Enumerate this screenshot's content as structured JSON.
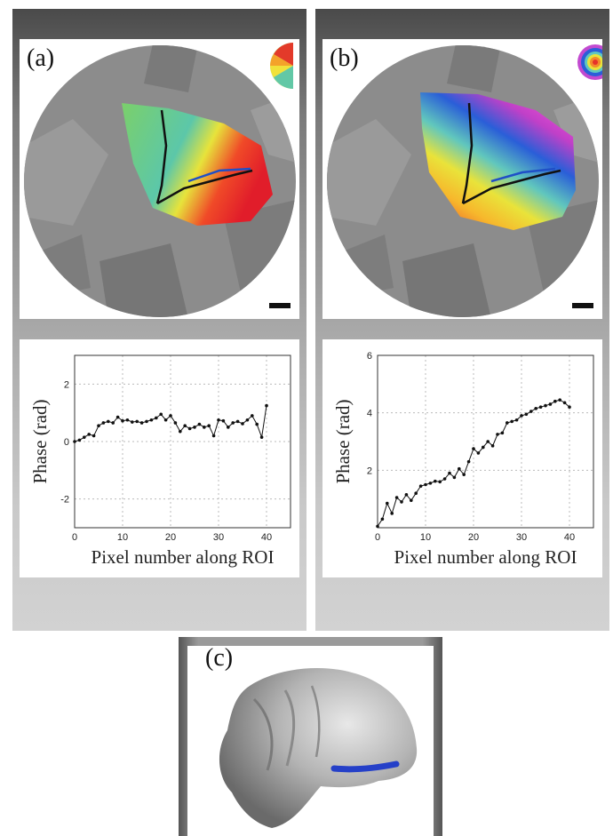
{
  "panels": {
    "a": {
      "label": "(a)"
    },
    "b": {
      "label": "(b)"
    },
    "c": {
      "label": "(c)"
    }
  },
  "colors": {
    "roi_line": "#1f4fc7",
    "path_line": "#111111",
    "cortex_gray": "#8c8c8c",
    "brain_blue_roi": "#2540c8"
  },
  "icons": {
    "a": "half-disk-colormap-icon",
    "b": "concentric-rings-colormap-icon"
  },
  "chart_data": [
    {
      "type": "line",
      "title": "",
      "xlabel": "Pixel number along ROI",
      "ylabel": "Phase (rad)",
      "xlim": [
        0,
        45
      ],
      "ylim": [
        -3,
        3
      ],
      "xticks": [
        0,
        10,
        20,
        30,
        40
      ],
      "yticks": [
        2,
        0,
        -2
      ],
      "grid": true,
      "x": [
        0,
        1,
        2,
        3,
        4,
        5,
        6,
        7,
        8,
        9,
        10,
        11,
        12,
        13,
        14,
        15,
        16,
        17,
        18,
        19,
        20,
        21,
        22,
        23,
        24,
        25,
        26,
        27,
        28,
        29,
        30,
        31,
        32,
        33,
        34,
        35,
        36,
        37,
        38,
        39,
        40
      ],
      "values": [
        0.0,
        0.05,
        0.15,
        0.25,
        0.2,
        0.55,
        0.65,
        0.7,
        0.65,
        0.85,
        0.72,
        0.75,
        0.68,
        0.7,
        0.65,
        0.7,
        0.75,
        0.82,
        0.95,
        0.75,
        0.9,
        0.65,
        0.35,
        0.55,
        0.45,
        0.5,
        0.6,
        0.5,
        0.55,
        0.2,
        0.75,
        0.72,
        0.5,
        0.65,
        0.7,
        0.62,
        0.75,
        0.9,
        0.6,
        0.15,
        1.25
      ]
    },
    {
      "type": "line",
      "title": "",
      "xlabel": "Pixel number along ROI",
      "ylabel": "Phase (rad)",
      "xlim": [
        0,
        45
      ],
      "ylim": [
        0,
        6
      ],
      "xticks": [
        0,
        10,
        20,
        30,
        40
      ],
      "yticks": [
        6,
        4,
        2
      ],
      "grid": true,
      "x": [
        0,
        1,
        2,
        3,
        4,
        5,
        6,
        7,
        8,
        9,
        10,
        11,
        12,
        13,
        14,
        15,
        16,
        17,
        18,
        19,
        20,
        21,
        22,
        23,
        24,
        25,
        26,
        27,
        28,
        29,
        30,
        31,
        32,
        33,
        34,
        35,
        36,
        37,
        38,
        39,
        40
      ],
      "values": [
        0.05,
        0.3,
        0.85,
        0.5,
        1.05,
        0.9,
        1.15,
        0.95,
        1.2,
        1.45,
        1.5,
        1.55,
        1.62,
        1.6,
        1.7,
        1.9,
        1.75,
        2.05,
        1.85,
        2.3,
        2.75,
        2.6,
        2.8,
        3.0,
        2.85,
        3.25,
        3.3,
        3.65,
        3.7,
        3.75,
        3.9,
        3.95,
        4.05,
        4.15,
        4.2,
        4.25,
        4.3,
        4.4,
        4.45,
        4.35,
        4.2
      ]
    }
  ]
}
